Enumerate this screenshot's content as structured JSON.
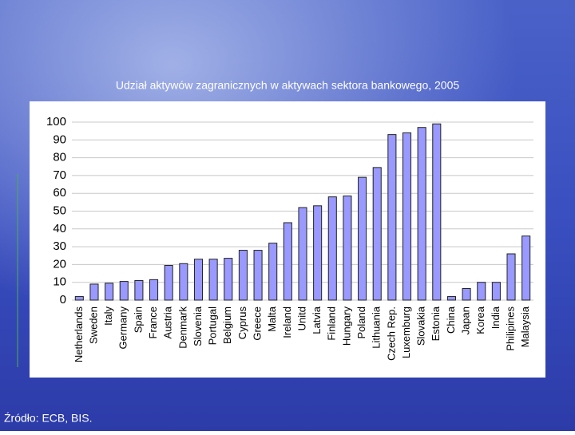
{
  "chart_data": {
    "type": "bar",
    "title": "Udział aktywów zagranicznych w aktywach sektora bankowego, 2005",
    "categories": [
      "Netherlands",
      "Sweden",
      "Italy",
      "Germany",
      "Spain",
      "France",
      "Austria",
      "Denmark",
      "Slovenia",
      "Portugal",
      "Belgium",
      "Cyprus",
      "Greece",
      "Malta",
      "Ireland",
      "Unitd",
      "Latvia",
      "Finland",
      "Hungary",
      "Poland",
      "Lithuania",
      "Czech Rep.",
      "Luxemburg",
      "Slovakia",
      "Estonia",
      "China",
      "Japan",
      "Korea",
      "India",
      "Philipines",
      "Malaysia"
    ],
    "values": [
      2,
      9,
      9.5,
      10.5,
      11,
      11.5,
      19.5,
      20.5,
      23,
      23,
      23.5,
      28,
      28,
      32,
      43.5,
      52,
      53,
      58,
      58.5,
      69,
      74.5,
      93,
      94,
      97,
      99,
      2,
      6.5,
      10,
      10,
      26,
      36
    ],
    "color": "#9999ff",
    "ylim": [
      0,
      100
    ],
    "yticks": [
      0,
      10,
      20,
      30,
      40,
      50,
      60,
      70,
      80,
      90,
      100
    ],
    "grid": true,
    "source": "Źródło: ECB, BIS."
  }
}
